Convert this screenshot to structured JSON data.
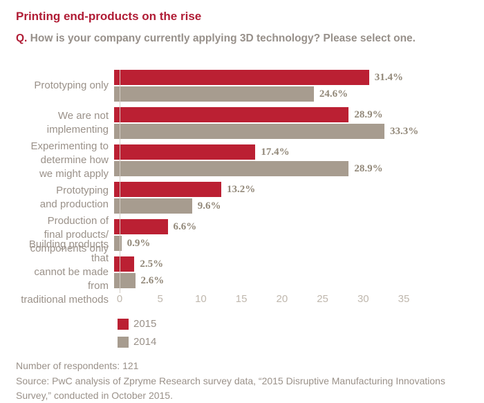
{
  "header": {
    "title": "Printing end-products on the rise",
    "question_prefix": "Q.",
    "question": " How is your company currently applying 3D technology? Please select one."
  },
  "chart_data": {
    "type": "bar",
    "orientation": "horizontal",
    "categories": [
      "Prototyping only",
      "We are not implementing",
      "Experimenting to determine how we might apply",
      "Prototyping and production",
      "Production of final products/ components only",
      "Building products that cannot be made from traditional methods"
    ],
    "category_lines": [
      [
        "Prototyping only"
      ],
      [
        "We are not",
        "implementing"
      ],
      [
        "Experimenting to",
        "determine how",
        "we might apply"
      ],
      [
        "Prototyping",
        "and production"
      ],
      [
        "Production of",
        "final products/",
        "components only"
      ],
      [
        "Building products that",
        "cannot be made from",
        "traditional methods"
      ]
    ],
    "series": [
      {
        "name": "2015",
        "color": "#BB2033",
        "values": [
          31.4,
          28.9,
          17.4,
          13.2,
          6.6,
          2.5
        ]
      },
      {
        "name": "2014",
        "color": "#A79C8F",
        "values": [
          24.6,
          33.3,
          28.9,
          9.6,
          0.9,
          2.6
        ]
      }
    ],
    "value_label_suffix": "%",
    "xlabel": "",
    "ylabel": "",
    "xlim": [
      0,
      35
    ],
    "x_ticks": [
      "0",
      "5",
      "10",
      "15",
      "20",
      "25",
      "30",
      "35"
    ],
    "grid": false,
    "legend_position": "bottom-left",
    "legend": [
      "2015",
      "2014"
    ]
  },
  "footer": {
    "respondents": "Number of respondents: 121",
    "source_lines": [
      "Source: PwC analysis of Zpryme Research survey data, “2015 Disruptive Manufacturing Innovations",
      "Survey,” conducted in October 2015."
    ]
  },
  "colors": {
    "title_red": "#B01C35",
    "bar_red": "#BB2033",
    "bar_gray": "#A79C8F",
    "label_gray": "#9A9189",
    "value_gray": "#928879",
    "tick_gray": "#BFB7AD",
    "axis_line": "#D4CDC5"
  }
}
